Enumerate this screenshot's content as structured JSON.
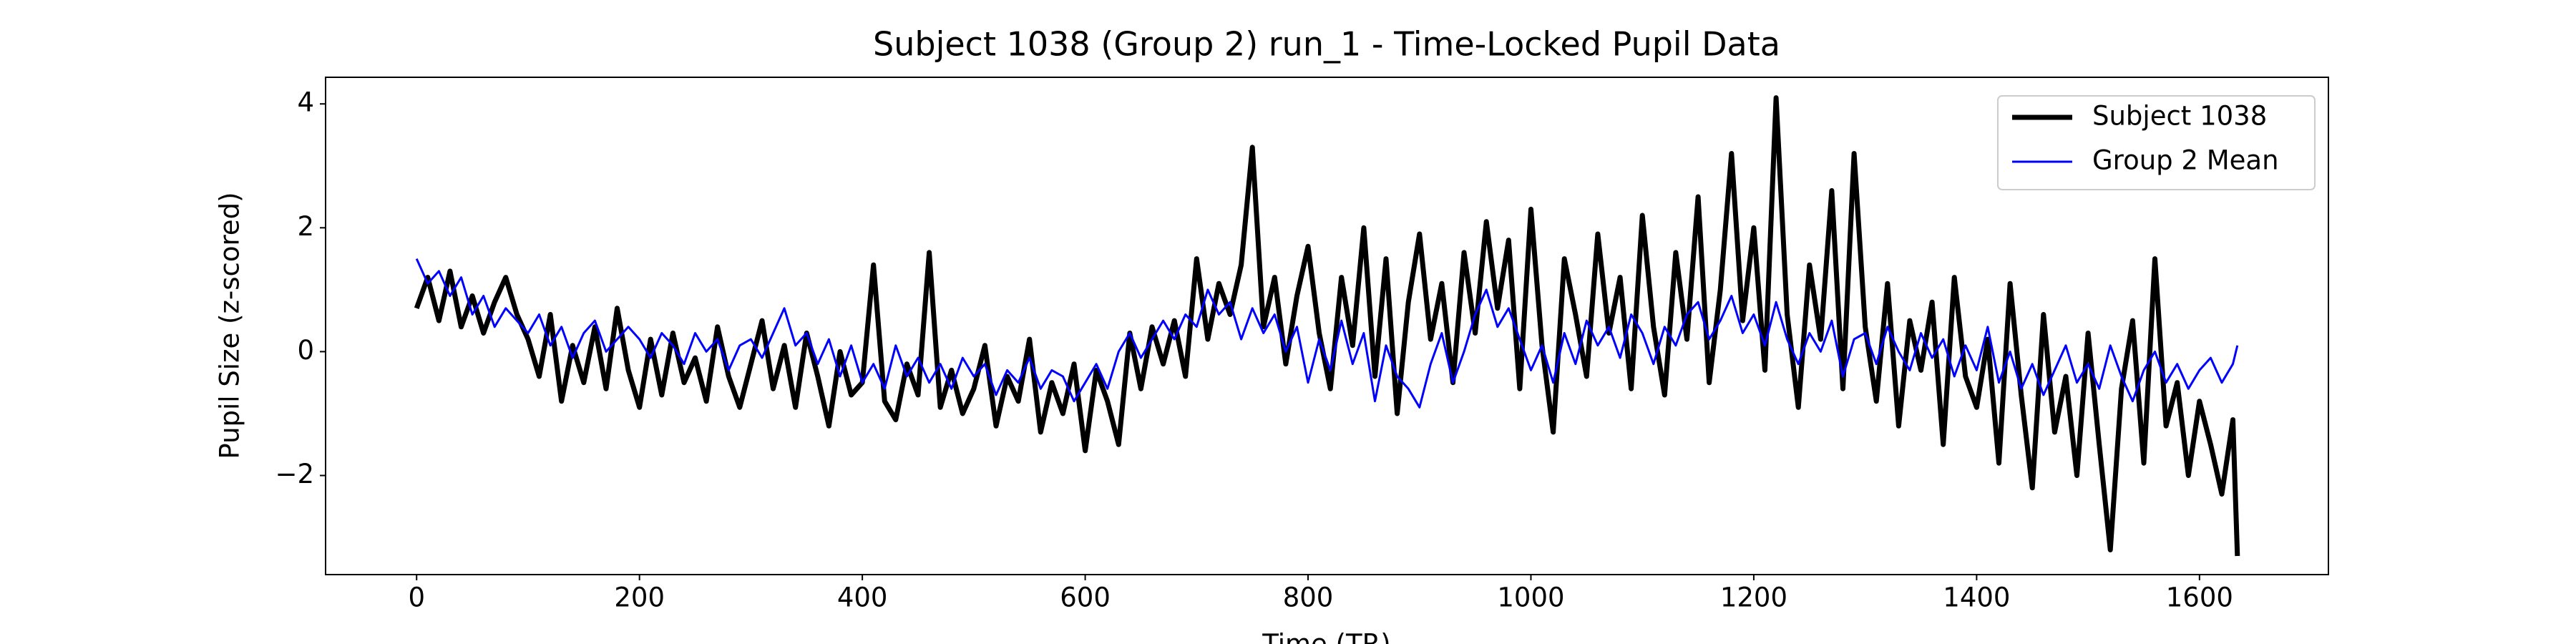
{
  "chart_data": {
    "type": "line",
    "title": "Subject 1038 (Group 2) run_1 - Time-Locked Pupil Data",
    "x_label": "Time (TR)",
    "y_label": "Pupil Size (z-scored)",
    "x": [
      0,
      10,
      20,
      30,
      40,
      50,
      60,
      70,
      80,
      90,
      100,
      110,
      120,
      130,
      140,
      150,
      160,
      170,
      180,
      190,
      200,
      210,
      220,
      230,
      240,
      250,
      260,
      270,
      280,
      290,
      300,
      310,
      320,
      330,
      340,
      350,
      360,
      370,
      380,
      390,
      400,
      410,
      420,
      430,
      440,
      450,
      460,
      470,
      480,
      490,
      500,
      510,
      520,
      530,
      540,
      550,
      560,
      570,
      580,
      590,
      600,
      610,
      620,
      630,
      640,
      650,
      660,
      670,
      680,
      690,
      700,
      710,
      720,
      730,
      740,
      750,
      760,
      770,
      780,
      790,
      800,
      810,
      820,
      830,
      840,
      850,
      860,
      870,
      880,
      890,
      900,
      910,
      920,
      930,
      940,
      950,
      960,
      970,
      980,
      990,
      1000,
      1010,
      1020,
      1030,
      1040,
      1050,
      1060,
      1070,
      1080,
      1090,
      1100,
      1110,
      1120,
      1130,
      1140,
      1150,
      1160,
      1170,
      1180,
      1190,
      1200,
      1210,
      1220,
      1230,
      1240,
      1250,
      1260,
      1270,
      1280,
      1290,
      1300,
      1310,
      1320,
      1330,
      1340,
      1350,
      1360,
      1370,
      1380,
      1390,
      1400,
      1410,
      1420,
      1430,
      1440,
      1450,
      1460,
      1470,
      1480,
      1490,
      1500,
      1510,
      1520,
      1530,
      1540,
      1550,
      1560,
      1570,
      1580,
      1590,
      1600,
      1610,
      1620,
      1630,
      1634
    ],
    "series": [
      {
        "name": "Subject 1038",
        "color": "#000000",
        "width": 7,
        "values": [
          0.7,
          1.2,
          0.5,
          1.3,
          0.4,
          0.9,
          0.3,
          0.8,
          1.2,
          0.6,
          0.2,
          -0.4,
          0.6,
          -0.8,
          0.1,
          -0.5,
          0.4,
          -0.6,
          0.7,
          -0.3,
          -0.9,
          0.2,
          -0.7,
          0.3,
          -0.5,
          -0.1,
          -0.8,
          0.4,
          -0.4,
          -0.9,
          -0.2,
          0.5,
          -0.6,
          0.1,
          -0.9,
          0.3,
          -0.4,
          -1.2,
          0.0,
          -0.7,
          -0.5,
          1.4,
          -0.8,
          -1.1,
          -0.2,
          -0.7,
          1.6,
          -0.9,
          -0.3,
          -1.0,
          -0.6,
          0.1,
          -1.2,
          -0.4,
          -0.8,
          0.2,
          -1.3,
          -0.5,
          -1.0,
          -0.2,
          -1.6,
          -0.3,
          -0.8,
          -1.5,
          0.3,
          -0.6,
          0.4,
          -0.2,
          0.5,
          -0.4,
          1.5,
          0.2,
          1.1,
          0.6,
          1.4,
          3.3,
          0.4,
          1.2,
          -0.2,
          0.9,
          1.7,
          0.3,
          -0.6,
          1.2,
          0.1,
          2.0,
          -0.4,
          1.5,
          -1.0,
          0.8,
          1.9,
          0.2,
          1.1,
          -0.5,
          1.6,
          0.3,
          2.1,
          0.7,
          1.8,
          -0.6,
          2.3,
          0.1,
          -1.3,
          1.5,
          0.6,
          -0.4,
          1.9,
          0.3,
          1.2,
          -0.6,
          2.2,
          0.4,
          -0.7,
          1.6,
          0.2,
          2.5,
          -0.5,
          1.0,
          3.2,
          0.5,
          2.0,
          -0.3,
          4.1,
          0.6,
          -0.9,
          1.4,
          0.2,
          2.6,
          -0.6,
          3.2,
          0.4,
          -0.8,
          1.1,
          -1.2,
          0.5,
          -0.3,
          0.8,
          -1.5,
          1.2,
          -0.4,
          -0.9,
          0.2,
          -1.8,
          1.1,
          -0.7,
          -2.2,
          0.6,
          -1.3,
          -0.4,
          -2.0,
          0.3,
          -1.5,
          -3.2,
          -0.6,
          0.5,
          -1.8,
          1.5,
          -1.2,
          -0.5,
          -2.0,
          -0.8,
          -1.5,
          -2.3,
          -1.1,
          -3.3
        ]
      },
      {
        "name": "Group 2 Mean",
        "color": "#0000ff",
        "width": 3,
        "values": [
          1.5,
          1.1,
          1.3,
          0.9,
          1.2,
          0.6,
          0.9,
          0.4,
          0.7,
          0.5,
          0.3,
          0.6,
          0.1,
          0.4,
          -0.1,
          0.3,
          0.5,
          0.0,
          0.2,
          0.4,
          0.2,
          -0.1,
          0.3,
          0.1,
          -0.2,
          0.3,
          0.0,
          0.2,
          -0.3,
          0.1,
          0.2,
          -0.1,
          0.3,
          0.7,
          0.1,
          0.3,
          -0.2,
          0.2,
          -0.4,
          0.1,
          -0.5,
          -0.2,
          -0.6,
          0.1,
          -0.4,
          -0.1,
          -0.5,
          -0.2,
          -0.6,
          -0.1,
          -0.4,
          -0.2,
          -0.7,
          -0.3,
          -0.5,
          -0.1,
          -0.6,
          -0.3,
          -0.4,
          -0.8,
          -0.5,
          -0.2,
          -0.6,
          0.0,
          0.3,
          -0.1,
          0.2,
          0.5,
          0.2,
          0.6,
          0.4,
          1.0,
          0.6,
          0.8,
          0.2,
          0.7,
          0.3,
          0.6,
          0.0,
          0.4,
          -0.5,
          0.2,
          -0.3,
          0.5,
          -0.2,
          0.3,
          -0.8,
          0.1,
          -0.4,
          -0.6,
          -0.9,
          -0.2,
          0.3,
          -0.5,
          0.0,
          0.6,
          1.0,
          0.4,
          0.7,
          0.2,
          -0.3,
          0.1,
          -0.5,
          0.3,
          -0.2,
          0.5,
          0.1,
          0.4,
          -0.1,
          0.6,
          0.3,
          -0.2,
          0.4,
          0.1,
          0.6,
          0.8,
          0.2,
          0.5,
          0.9,
          0.3,
          0.6,
          0.1,
          0.8,
          0.2,
          -0.2,
          0.3,
          0.0,
          0.5,
          -0.4,
          0.2,
          0.3,
          -0.2,
          0.4,
          0.0,
          -0.3,
          0.3,
          -0.1,
          0.2,
          -0.4,
          0.1,
          -0.3,
          0.4,
          -0.5,
          0.0,
          -0.6,
          -0.2,
          -0.7,
          -0.3,
          0.1,
          -0.5,
          -0.2,
          -0.6,
          0.1,
          -0.4,
          -0.8,
          -0.3,
          0.0,
          -0.5,
          -0.2,
          -0.6,
          -0.3,
          -0.1,
          -0.5,
          -0.2,
          0.1
        ]
      }
    ],
    "xlim": [
      -81.7,
      1715.7
    ],
    "xticks": [
      0,
      200,
      400,
      600,
      800,
      1000,
      1200,
      1400,
      1600
    ],
    "ylim": [
      -3.6,
      4.43
    ],
    "yticks": [
      {
        "value": -2,
        "label": "−2"
      },
      0,
      2,
      4
    ],
    "grid": false,
    "legend": "upper right"
  }
}
